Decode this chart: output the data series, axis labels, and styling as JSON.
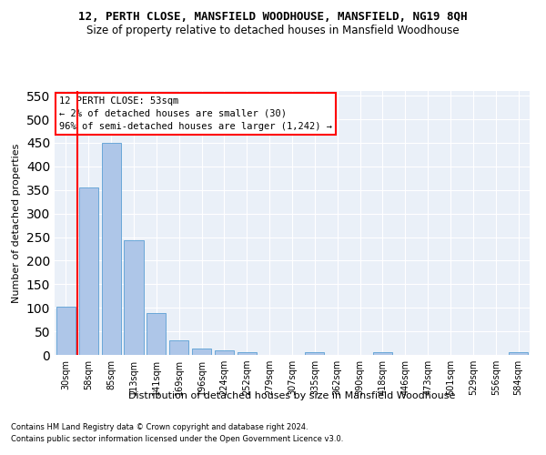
{
  "title": "12, PERTH CLOSE, MANSFIELD WOODHOUSE, MANSFIELD, NG19 8QH",
  "subtitle": "Size of property relative to detached houses in Mansfield Woodhouse",
  "xlabel": "Distribution of detached houses by size in Mansfield Woodhouse",
  "ylabel": "Number of detached properties",
  "footnote1": "Contains HM Land Registry data © Crown copyright and database right 2024.",
  "footnote2": "Contains public sector information licensed under the Open Government Licence v3.0.",
  "bar_labels": [
    "30sqm",
    "58sqm",
    "85sqm",
    "113sqm",
    "141sqm",
    "169sqm",
    "196sqm",
    "224sqm",
    "252sqm",
    "279sqm",
    "307sqm",
    "335sqm",
    "362sqm",
    "390sqm",
    "418sqm",
    "446sqm",
    "473sqm",
    "501sqm",
    "529sqm",
    "556sqm",
    "584sqm"
  ],
  "bar_values": [
    103,
    355,
    450,
    243,
    88,
    30,
    14,
    9,
    5,
    0,
    0,
    5,
    0,
    0,
    5,
    0,
    0,
    0,
    0,
    0,
    5
  ],
  "bar_color": "#aec6e8",
  "bar_edge_color": "#5a9fd4",
  "vline_color": "red",
  "annotation_title": "12 PERTH CLOSE: 53sqm",
  "annotation_line1": "← 2% of detached houses are smaller (30)",
  "annotation_line2": "96% of semi-detached houses are larger (1,242) →",
  "ylim": [
    0,
    560
  ],
  "yticks": [
    0,
    50,
    100,
    150,
    200,
    250,
    300,
    350,
    400,
    450,
    500,
    550
  ],
  "bg_color": "#eaf0f8",
  "grid_color": "#ffffff",
  "title_fontsize": 9,
  "subtitle_fontsize": 8.5,
  "ylabel_fontsize": 8,
  "xlabel_fontsize": 8,
  "tick_fontsize": 7,
  "annot_fontsize": 7.5,
  "footnote_fontsize": 6
}
